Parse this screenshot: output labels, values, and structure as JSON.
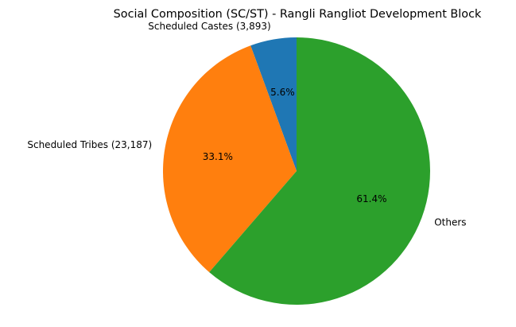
{
  "chart_data": {
    "type": "pie",
    "title": "Social Composition (SC/ST) - Rangli Rangliot Development Block",
    "categories": [
      "Scheduled Castes (3,893)",
      "Scheduled Tribes (23,187)",
      "Others"
    ],
    "values": [
      5.6,
      33.1,
      61.4
    ],
    "counts": {
      "Scheduled Castes": 3893,
      "Scheduled Tribes": 23187
    },
    "pct_labels": [
      "5.6%",
      "33.1%",
      "61.4%"
    ],
    "colors": [
      "#1f77b4",
      "#ff7f0e",
      "#2ca02c"
    ],
    "start_angle": 90,
    "direction": "counterclockwise",
    "legend": "none"
  }
}
